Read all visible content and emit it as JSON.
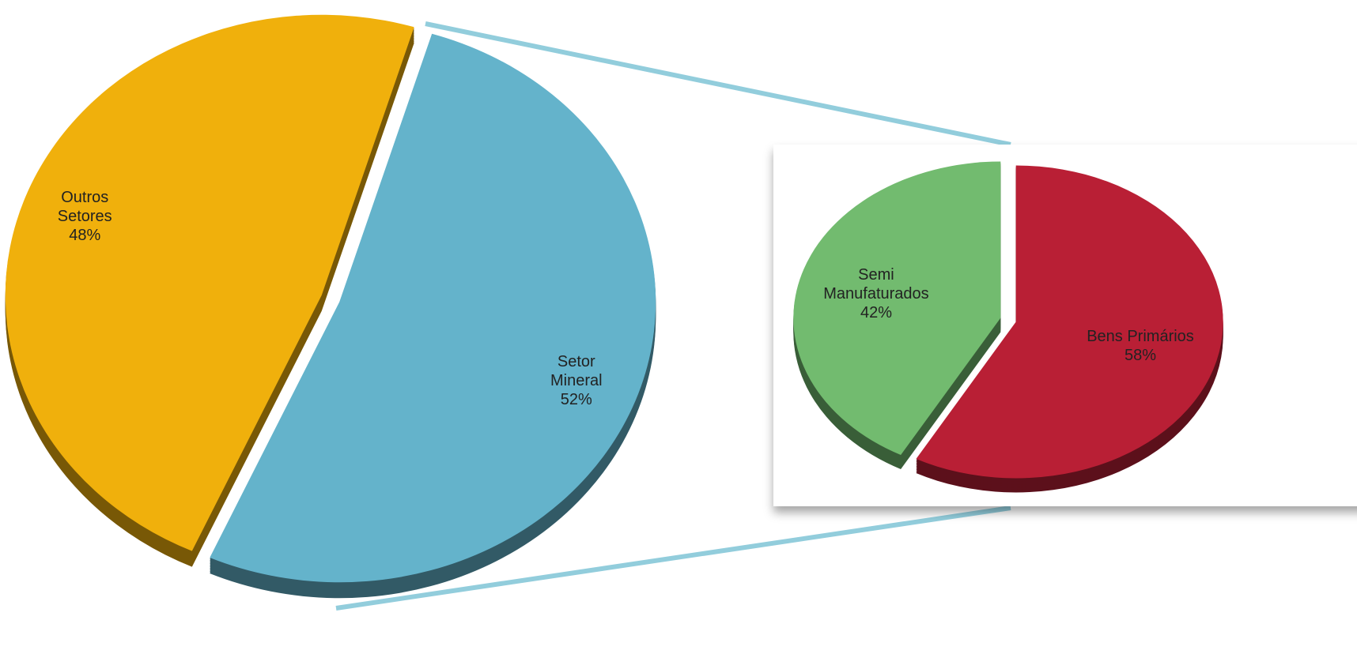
{
  "chart_data": [
    {
      "type": "pie",
      "categories": [
        "Setor Mineral",
        "Outros Setores"
      ],
      "values": [
        52,
        48
      ],
      "value_labels": [
        "52%",
        "48%"
      ],
      "colors": [
        "#64b3cb",
        "#f0b00c"
      ]
    },
    {
      "type": "pie",
      "categories": [
        "Bens Primários",
        "Semi Manufaturados"
      ],
      "values": [
        58,
        42
      ],
      "value_labels": [
        "58%",
        "42%"
      ],
      "colors": [
        "#b91f35",
        "#72bb6f"
      ]
    }
  ]
}
